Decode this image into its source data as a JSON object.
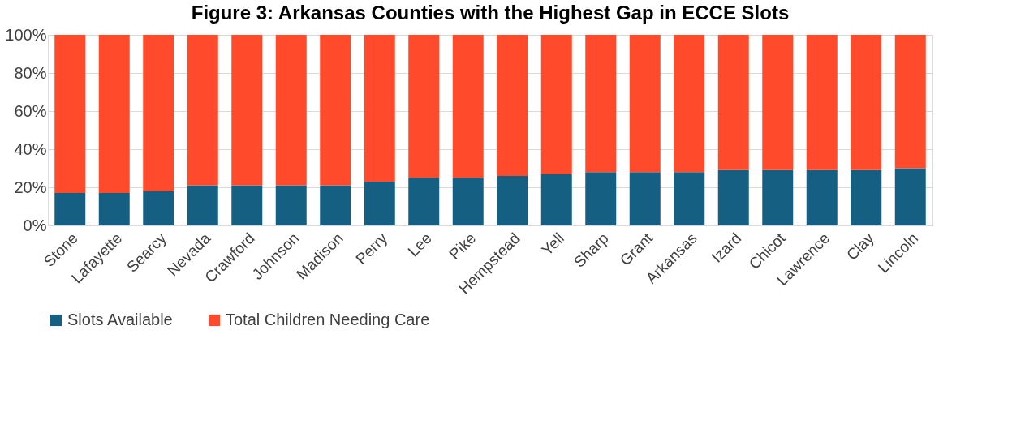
{
  "chart_data": {
    "type": "bar",
    "title": "Figure 3: Arkansas Counties with the Highest Gap in ECCE Slots",
    "categories": [
      "Stone",
      "Lafayette",
      "Searcy",
      "Nevada",
      "Crawford",
      "Johnson",
      "Madison",
      "Perry",
      "Lee",
      "Pike",
      "Hempstead",
      "Yell",
      "Sharp",
      "Grant",
      "Arkansas",
      "Izard",
      "Chicot",
      "Lawrence",
      "Clay",
      "Lincoln"
    ],
    "stacked": true,
    "series": [
      {
        "name": "Slots Available",
        "color": "#156082",
        "values": [
          17,
          17,
          18,
          21,
          21,
          21,
          21,
          23,
          25,
          25,
          26,
          27,
          28,
          28,
          28,
          29,
          29,
          29,
          29,
          30
        ]
      },
      {
        "name": "Total Children Needing Care",
        "color": "#ff4b2b",
        "values": [
          83,
          83,
          82,
          79,
          79,
          79,
          79,
          77,
          75,
          75,
          74,
          73,
          72,
          72,
          72,
          71,
          71,
          71,
          71,
          70
        ]
      }
    ],
    "ylim": [
      0,
      100
    ],
    "yticks": [
      {
        "value": 0,
        "label": "0%"
      },
      {
        "value": 20,
        "label": "20%"
      },
      {
        "value": 40,
        "label": "40%"
      },
      {
        "value": 60,
        "label": "60%"
      },
      {
        "value": 80,
        "label": "80%"
      },
      {
        "value": 100,
        "label": "100%"
      }
    ],
    "grid": "y",
    "legend": "bottom"
  }
}
